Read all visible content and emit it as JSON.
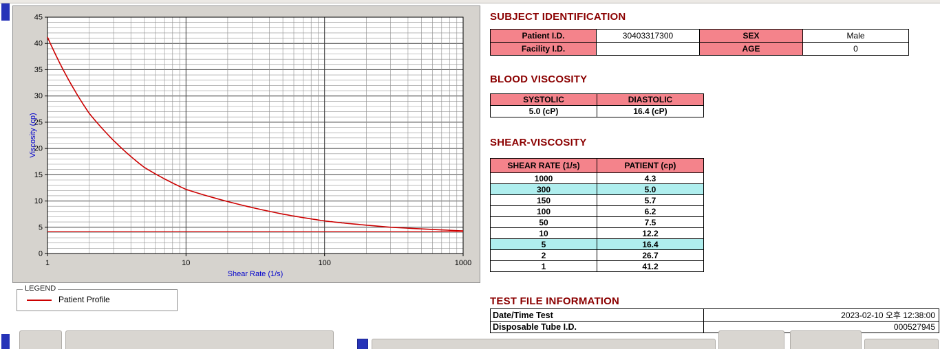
{
  "colors": {
    "heading": "#8B0000",
    "table_header_pink": "#F4838B",
    "highlight_cyan": "#AFEEEE",
    "chart_line_red": "#CC0000",
    "axis_title_blue": "#0000CC",
    "panel_gray": "#D6D3CE",
    "chrome_blue": "#2633B8"
  },
  "chart_data": {
    "type": "line",
    "title": "",
    "xlabel": "Shear Rate (1/s)",
    "ylabel": "Viscosity (cp)",
    "x_scale": "log",
    "xlim": [
      1,
      1000
    ],
    "ylim": [
      0,
      45
    ],
    "xticks": [
      1,
      10,
      100,
      1000
    ],
    "yticks": [
      0,
      5,
      10,
      15,
      20,
      25,
      30,
      35,
      40,
      45
    ],
    "grid": "on",
    "line_color": "#CC0000",
    "reference_line": 4.2,
    "series": [
      {
        "name": "Patient Profile",
        "x": [
          1,
          2,
          5,
          10,
          50,
          100,
          150,
          300,
          1000
        ],
        "y": [
          41.2,
          26.7,
          16.4,
          12.2,
          7.5,
          6.2,
          5.7,
          5.0,
          4.3
        ]
      }
    ],
    "legend_position": "below-left"
  },
  "legend": {
    "title": "LEGEND",
    "series_label": "Patient Profile"
  },
  "subject": {
    "heading": "SUBJECT IDENTIFICATION",
    "patient_id_label": "Patient I.D.",
    "patient_id": "30403317300",
    "sex_label": "SEX",
    "sex": "Male",
    "facility_id_label": "Facility I.D.",
    "facility_id": "",
    "age_label": "AGE",
    "age": "0"
  },
  "blood_viscosity": {
    "heading": "BLOOD VISCOSITY",
    "systolic_label": "SYSTOLIC",
    "diastolic_label": "DIASTOLIC",
    "systolic_value": "5.0 (cP)",
    "diastolic_value": "16.4 (cP)"
  },
  "shear_viscosity": {
    "heading": "SHEAR-VISCOSITY",
    "col_shear": "SHEAR RATE (1/s)",
    "col_patient": "PATIENT (cp)",
    "rows": [
      {
        "rate": "1000",
        "value": "4.3",
        "highlight": false
      },
      {
        "rate": "300",
        "value": "5.0",
        "highlight": true
      },
      {
        "rate": "150",
        "value": "5.7",
        "highlight": false
      },
      {
        "rate": "100",
        "value": "6.2",
        "highlight": false
      },
      {
        "rate": "50",
        "value": "7.5",
        "highlight": false
      },
      {
        "rate": "10",
        "value": "12.2",
        "highlight": false
      },
      {
        "rate": "5",
        "value": "16.4",
        "highlight": true
      },
      {
        "rate": "2",
        "value": "26.7",
        "highlight": false
      },
      {
        "rate": "1",
        "value": "41.2",
        "highlight": false
      }
    ]
  },
  "test_file": {
    "heading": "TEST FILE INFORMATION",
    "date_label": "Date/Time Test",
    "date_value": "2023-02-10  오후 12:38:00",
    "tube_label": "Disposable Tube I.D.",
    "tube_value": "000527945"
  }
}
